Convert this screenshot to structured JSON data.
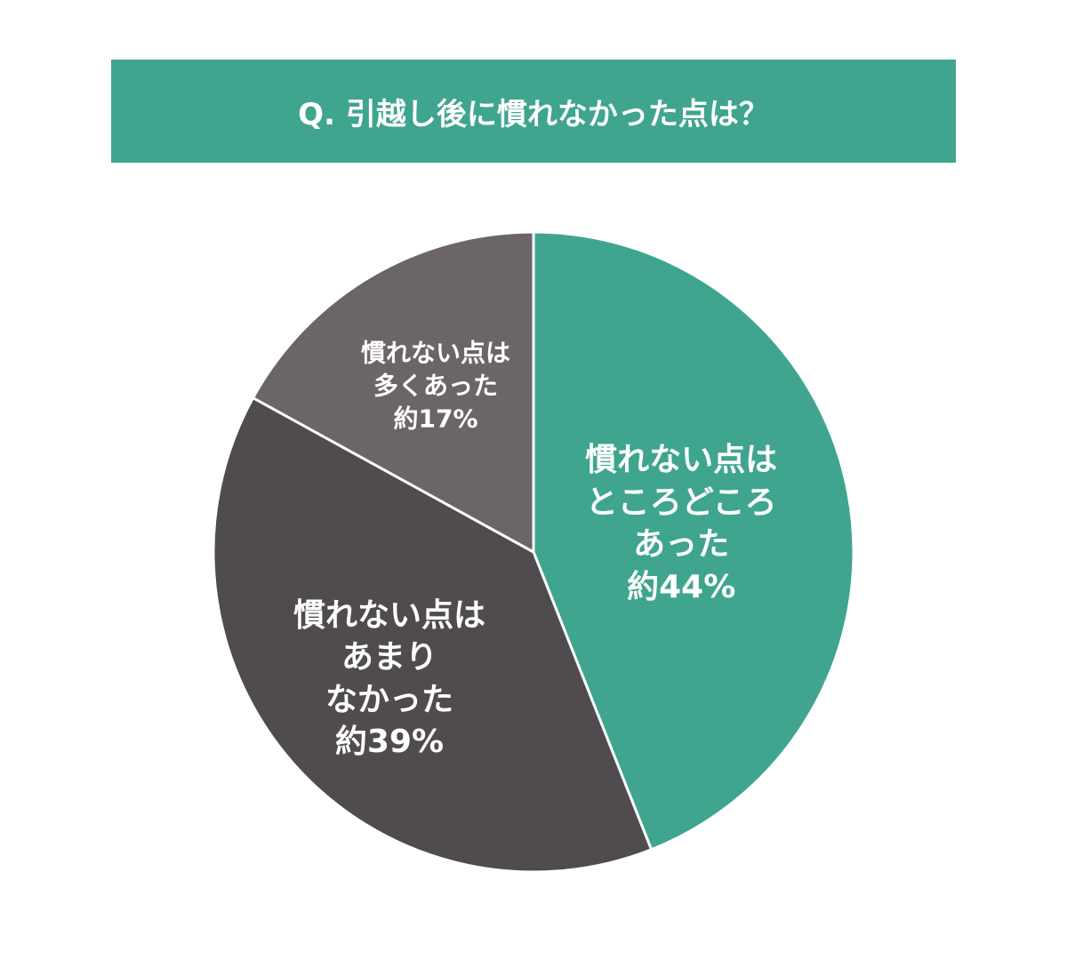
{
  "chart_data": {
    "type": "pie",
    "title": "Q. 引越し後に慣れなかった点は？",
    "categories": [
      "慣れない点は\nところどころ\nあった",
      "慣れない点は\nあまり\nなかった",
      "慣れない点は\n多くあった"
    ],
    "values": [
      44,
      39,
      17
    ],
    "value_labels": [
      "約44%",
      "約39%",
      "約17%"
    ],
    "colors": [
      "#3fa58e",
      "#4f4b4f",
      "#6b6468"
    ]
  }
}
